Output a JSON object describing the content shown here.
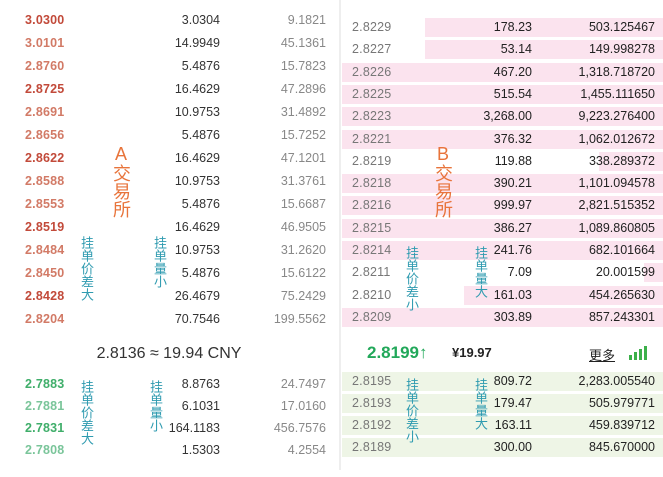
{
  "exchange_a": {
    "label": "A交易所",
    "spread_note": "挂单价差大",
    "volume_note": "挂单量小",
    "asks": [
      {
        "price": "3.0300",
        "qty": "3.0304",
        "total": "9.1821"
      },
      {
        "price": "3.0101",
        "qty": "14.9949",
        "total": "45.1361"
      },
      {
        "price": "2.8760",
        "qty": "5.4876",
        "total": "15.7823"
      },
      {
        "price": "2.8725",
        "qty": "16.4629",
        "total": "47.2896"
      },
      {
        "price": "2.8691",
        "qty": "10.9753",
        "total": "31.4892"
      },
      {
        "price": "2.8656",
        "qty": "5.4876",
        "total": "15.7252"
      },
      {
        "price": "2.8622",
        "qty": "16.4629",
        "total": "47.1201"
      },
      {
        "price": "2.8588",
        "qty": "10.9753",
        "total": "31.3761"
      },
      {
        "price": "2.8553",
        "qty": "5.4876",
        "total": "15.6687"
      },
      {
        "price": "2.8519",
        "qty": "16.4629",
        "total": "46.9505"
      },
      {
        "price": "2.8484",
        "qty": "10.9753",
        "total": "31.2620"
      },
      {
        "price": "2.8450",
        "qty": "5.4876",
        "total": "15.6122"
      },
      {
        "price": "2.8428",
        "qty": "26.4679",
        "total": "75.2429"
      },
      {
        "price": "2.8204",
        "qty": "70.7546",
        "total": "199.5562"
      }
    ],
    "mid": "2.8136 ≈ 19.94 CNY",
    "bids": [
      {
        "price": "2.7883",
        "qty": "8.8763",
        "total": "24.7497"
      },
      {
        "price": "2.7881",
        "qty": "6.1031",
        "total": "17.0160"
      },
      {
        "price": "2.7831",
        "qty": "164.1183",
        "total": "456.7576"
      },
      {
        "price": "2.7808",
        "qty": "1.5303",
        "total": "4.2554"
      }
    ]
  },
  "exchange_b": {
    "label": "B交易所",
    "spread_note": "挂单价差小",
    "volume_note": "挂单量大",
    "asks": [
      {
        "price": "2.8229",
        "qty": "178.23",
        "total": "503.125467",
        "depth": 0.74
      },
      {
        "price": "2.8227",
        "qty": "53.14",
        "total": "149.998278",
        "depth": 0.74
      },
      {
        "price": "2.8226",
        "qty": "467.20",
        "total": "1,318.718720",
        "depth": 1.0
      },
      {
        "price": "2.8225",
        "qty": "515.54",
        "total": "1,455.111650",
        "depth": 1.0
      },
      {
        "price": "2.8223",
        "qty": "3,268.00",
        "total": "9,223.276400",
        "depth": 1.0
      },
      {
        "price": "2.8221",
        "qty": "376.32",
        "total": "1,062.012672",
        "depth": 1.0
      },
      {
        "price": "2.8219",
        "qty": "119.88",
        "total": "338.289372",
        "depth": 0.2
      },
      {
        "price": "2.8218",
        "qty": "390.21",
        "total": "1,101.094578",
        "depth": 1.0
      },
      {
        "price": "2.8216",
        "qty": "999.97",
        "total": "2,821.515352",
        "depth": 1.0
      },
      {
        "price": "2.8215",
        "qty": "386.27",
        "total": "1,089.860805",
        "depth": 1.0
      },
      {
        "price": "2.8214",
        "qty": "241.76",
        "total": "682.101664",
        "depth": 1.0
      },
      {
        "price": "2.8211",
        "qty": "7.09",
        "total": "20.001599",
        "depth": 0.06
      },
      {
        "price": "2.8210",
        "qty": "161.03",
        "total": "454.265630",
        "depth": 0.62
      },
      {
        "price": "2.8209",
        "qty": "303.89",
        "total": "857.243301",
        "depth": 1.0
      }
    ],
    "last_price": "2.8199",
    "last_arrow": "↑",
    "last_cny": "¥19.97",
    "more": "更多",
    "bids": [
      {
        "price": "2.8195",
        "qty": "809.72",
        "total": "2,283.005540",
        "depth": 1.0
      },
      {
        "price": "2.8193",
        "qty": "179.47",
        "total": "505.979771",
        "depth": 1.0
      },
      {
        "price": "2.8192",
        "qty": "163.11",
        "total": "459.839712",
        "depth": 1.0
      },
      {
        "price": "2.8189",
        "qty": "300.00",
        "total": "845.670000",
        "depth": 1.0
      }
    ]
  },
  "colors": {
    "ask": "#c24a3a",
    "bid": "#3fae6a",
    "pink": "#fbe3ee",
    "accent": "#2f9bb0",
    "label": "#e8743b"
  }
}
